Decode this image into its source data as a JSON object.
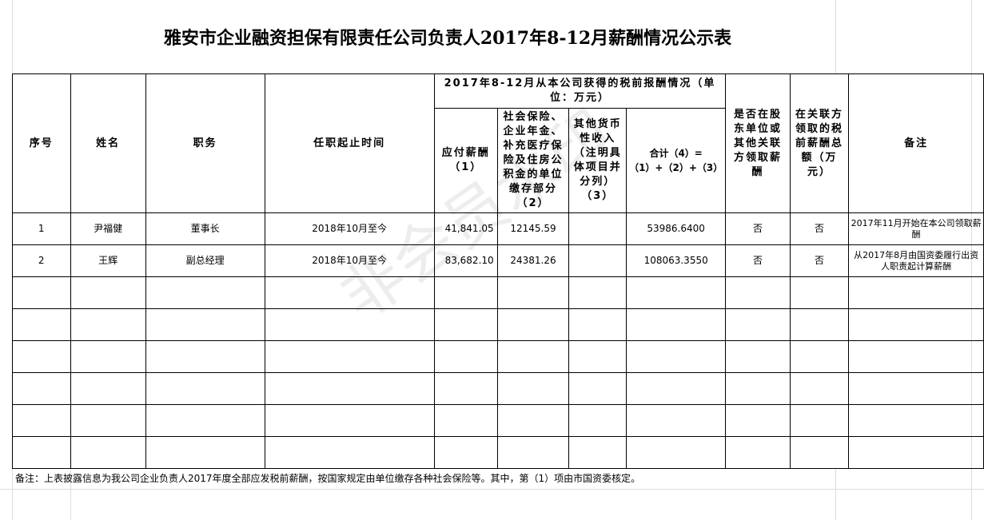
{
  "title": "雅安市企业融资担保有限责任公司负责人2017年8-12月薪酬情况公示表",
  "headers": {
    "seq": "序号",
    "name": "姓名",
    "position": "职务",
    "term": "任职起止时间",
    "group": "2017年8-12月从本公司获得的税前报酬情况（单位：万元）",
    "c1": "应付薪酬（1）",
    "c2": "社会保险、企业年金、补充医疗保险及住房公积金的单位缴存部分（2）",
    "c3": "其他货币性收入（注明具体项目并分列）（3）",
    "c4": "合计（4）=（1）+（2）+（3）",
    "shareholder": "是否在股东单位或其他关联方领取薪酬",
    "related": "在关联方领取的税前薪酬总额（万元）",
    "remark": "备注"
  },
  "rows": [
    {
      "seq": "1",
      "name": "尹福健",
      "position": "董事长",
      "term": "2018年10月至今",
      "c1": "41,841.05",
      "c2": "12145.59",
      "c3": "",
      "c4": "53986.6400",
      "shareholder": "否",
      "related": "否",
      "remark": "2017年11月开始在本公司领取薪酬"
    },
    {
      "seq": "2",
      "name": "王辉",
      "position": "副总经理",
      "term": "2018年10月至今",
      "c1": "83,682.10",
      "c2": "24381.26",
      "c3": "",
      "c4": "108063.3550",
      "shareholder": "否",
      "related": "否",
      "remark": "从2017年8月由国资委履行出资人职责起计算薪酬"
    }
  ],
  "footnote": "备注：上表披露信息为我公司企业负责人2017年度全部应发税前薪酬，按国家规定由单位缴存各种社会保险等。其中，第（1）项由市国资委核定。",
  "watermark": "非会员水印"
}
